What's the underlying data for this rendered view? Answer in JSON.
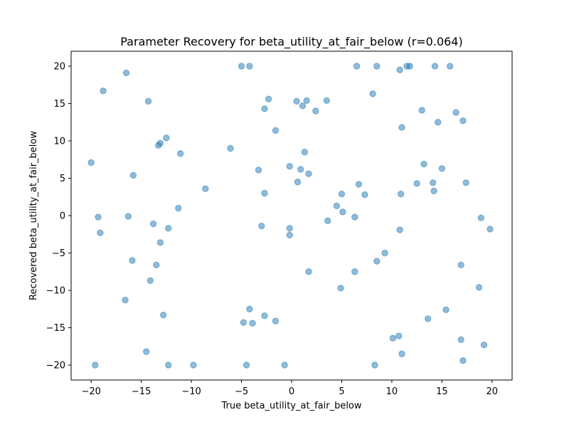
{
  "chart_data": {
    "type": "scatter",
    "title": "Parameter Recovery for beta_utility_at_fair_below (r=0.064)",
    "xlabel": "True beta_utility_at_fair_below",
    "ylabel": "Recovered beta_utility_at_fair_below",
    "xlim": [
      -22.0,
      22.0
    ],
    "ylim": [
      -22.0,
      22.0
    ],
    "xticks": [
      -20,
      -15,
      -10,
      -5,
      0,
      5,
      10,
      15,
      20
    ],
    "yticks": [
      -20,
      -15,
      -10,
      -5,
      0,
      5,
      10,
      15,
      20
    ],
    "grid": false,
    "marker_color": "#1f77b4",
    "points": [
      [
        -5.0,
        20.0
      ],
      [
        -4.2,
        20.0
      ],
      [
        6.5,
        20.0
      ],
      [
        8.5,
        20.0
      ],
      [
        11.5,
        20.0
      ],
      [
        11.8,
        20.0
      ],
      [
        14.3,
        20.0
      ],
      [
        15.8,
        20.0
      ],
      [
        10.8,
        19.5
      ],
      [
        -16.5,
        19.1
      ],
      [
        -18.8,
        16.7
      ],
      [
        8.1,
        16.3
      ],
      [
        -2.3,
        15.6
      ],
      [
        0.5,
        15.3
      ],
      [
        1.5,
        15.4
      ],
      [
        3.5,
        15.4
      ],
      [
        -14.3,
        15.3
      ],
      [
        1.1,
        14.7
      ],
      [
        -2.7,
        14.3
      ],
      [
        13.0,
        14.1
      ],
      [
        2.4,
        14.0
      ],
      [
        16.4,
        13.8
      ],
      [
        17.1,
        12.7
      ],
      [
        14.6,
        12.5
      ],
      [
        11.0,
        11.8
      ],
      [
        -1.6,
        11.4
      ],
      [
        -12.5,
        10.4
      ],
      [
        -13.1,
        9.7
      ],
      [
        -13.3,
        9.4
      ],
      [
        -6.1,
        9.0
      ],
      [
        1.3,
        8.5
      ],
      [
        -11.1,
        8.3
      ],
      [
        -20.0,
        7.1
      ],
      [
        13.2,
        6.9
      ],
      [
        -0.2,
        6.6
      ],
      [
        15.0,
        6.3
      ],
      [
        0.9,
        6.2
      ],
      [
        -3.3,
        6.1
      ],
      [
        1.7,
        5.6
      ],
      [
        -15.8,
        5.4
      ],
      [
        0.6,
        4.5
      ],
      [
        17.4,
        4.4
      ],
      [
        14.1,
        4.4
      ],
      [
        12.5,
        4.3
      ],
      [
        6.7,
        4.2
      ],
      [
        -8.6,
        3.6
      ],
      [
        14.2,
        3.3
      ],
      [
        -2.7,
        3.0
      ],
      [
        5.0,
        2.9
      ],
      [
        10.9,
        2.9
      ],
      [
        7.3,
        2.8
      ],
      [
        4.5,
        1.3
      ],
      [
        -11.3,
        1.0
      ],
      [
        5.1,
        0.5
      ],
      [
        -16.3,
        -0.1
      ],
      [
        -19.3,
        -0.2
      ],
      [
        6.3,
        -0.2
      ],
      [
        18.9,
        -0.3
      ],
      [
        3.6,
        -0.7
      ],
      [
        -13.8,
        -1.1
      ],
      [
        -3.0,
        -1.4
      ],
      [
        -12.3,
        -1.7
      ],
      [
        -0.2,
        -1.7
      ],
      [
        19.8,
        -1.8
      ],
      [
        10.8,
        -1.9
      ],
      [
        -19.1,
        -2.3
      ],
      [
        -0.2,
        -2.6
      ],
      [
        -13.1,
        -3.6
      ],
      [
        9.3,
        -5.0
      ],
      [
        -15.9,
        -6.0
      ],
      [
        8.5,
        -6.1
      ],
      [
        -13.5,
        -6.6
      ],
      [
        16.9,
        -6.6
      ],
      [
        1.7,
        -7.5
      ],
      [
        6.3,
        -7.5
      ],
      [
        -14.1,
        -8.7
      ],
      [
        4.9,
        -9.7
      ],
      [
        18.7,
        -9.6
      ],
      [
        -16.6,
        -11.3
      ],
      [
        -4.2,
        -12.5
      ],
      [
        15.4,
        -12.6
      ],
      [
        -12.8,
        -13.3
      ],
      [
        -2.7,
        -13.4
      ],
      [
        13.6,
        -13.8
      ],
      [
        -1.6,
        -14.1
      ],
      [
        -4.8,
        -14.3
      ],
      [
        -3.9,
        -14.4
      ],
      [
        10.1,
        -16.4
      ],
      [
        10.7,
        -16.1
      ],
      [
        16.9,
        -16.6
      ],
      [
        19.2,
        -17.3
      ],
      [
        -14.5,
        -18.2
      ],
      [
        11.0,
        -18.5
      ],
      [
        17.1,
        -19.4
      ],
      [
        -19.6,
        -20.0
      ],
      [
        -12.3,
        -20.0
      ],
      [
        -9.8,
        -20.0
      ],
      [
        -4.5,
        -20.0
      ],
      [
        -0.7,
        -20.0
      ],
      [
        8.3,
        -20.0
      ]
    ]
  }
}
